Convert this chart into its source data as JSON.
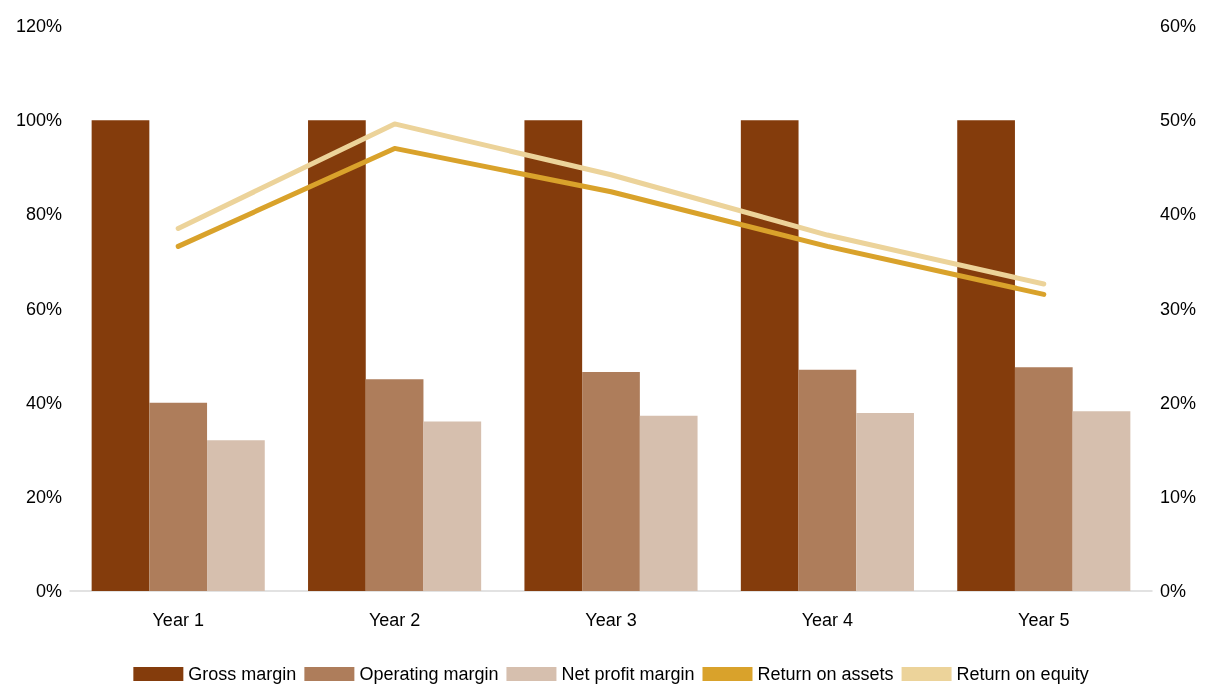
{
  "chart_data": {
    "type": "bar",
    "categories": [
      "Year 1",
      "Year 2",
      "Year 3",
      "Year 4",
      "Year 5"
    ],
    "series": [
      {
        "name": "Gross margin",
        "color": "#843c0c",
        "values": [
          100,
          100,
          100,
          100,
          100
        ]
      },
      {
        "name": "Operating margin",
        "color": "#ae7d5b",
        "values": [
          40,
          45,
          46.5,
          47,
          47.5
        ]
      },
      {
        "name": "Net profit margin",
        "color": "#d6bfae",
        "values": [
          32,
          36,
          37.2,
          37.8,
          38.2
        ]
      },
      {
        "name": "Return on assets",
        "type": "line",
        "axis": "y2",
        "color": "#d9a22b",
        "values": [
          36.6,
          47,
          42.4,
          36.6,
          31.5
        ]
      },
      {
        "name": "Return on equity",
        "type": "line",
        "axis": "y2",
        "color": "#ecd39a",
        "values": [
          38.5,
          49.6,
          44.2,
          37.8,
          32.6
        ]
      }
    ],
    "ylim": [
      0,
      120
    ],
    "yticks": [
      {
        "value": 0,
        "label": "0%"
      },
      {
        "value": 20,
        "label": "20%"
      },
      {
        "value": 40,
        "label": "40%"
      },
      {
        "value": 60,
        "label": "60%"
      },
      {
        "value": 80,
        "label": "80%"
      },
      {
        "value": 100,
        "label": "100%"
      },
      {
        "value": 120,
        "label": "120%"
      }
    ],
    "y2lim": [
      0,
      60
    ],
    "y2ticks": [
      {
        "value": 0,
        "label": "0%"
      },
      {
        "value": 10,
        "label": "10%"
      },
      {
        "value": 20,
        "label": "20%"
      },
      {
        "value": 30,
        "label": "30%"
      },
      {
        "value": 40,
        "label": "40%"
      },
      {
        "value": 50,
        "label": "50%"
      },
      {
        "value": 60,
        "label": "60%"
      }
    ],
    "grid": false,
    "legend": "bottom",
    "marker": "none",
    "line_style": "solid"
  }
}
